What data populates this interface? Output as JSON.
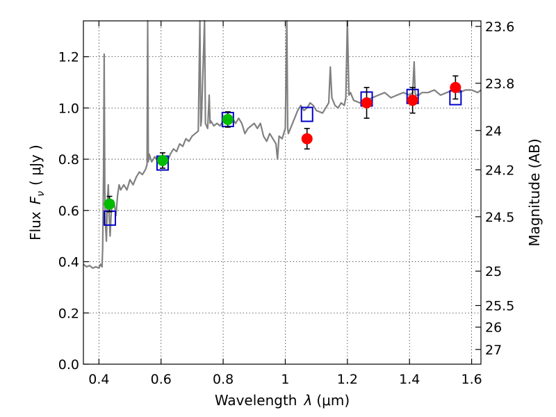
{
  "chart_data": {
    "type": "scatter",
    "xlabel": "Wavelength",
    "xlabel_symbol": "λ",
    "xlabel_unit": "(μm)",
    "ylabel": "Flux",
    "ylabel_symbol": "F",
    "ylabel_subscript": "ν",
    "ylabel_unit": "( μJy )",
    "y2label": "Magnitude (AB)",
    "xlim": [
      0.35,
      1.63
    ],
    "ylim": [
      0.0,
      1.34
    ],
    "grid": true,
    "x_ticks": [
      0.4,
      0.6,
      0.8,
      1.0,
      1.2,
      1.4,
      1.6
    ],
    "x_tick_labels": [
      "0.4",
      "0.6",
      "0.8",
      "1",
      "1.2",
      "1.4",
      "1.6"
    ],
    "y_ticks": [
      0.0,
      0.2,
      0.4,
      0.6,
      0.8,
      1.0,
      1.2
    ],
    "y_tick_labels": [
      "0.0",
      "0.2",
      "0.4",
      "0.6",
      "0.8",
      "1.0",
      "1.2"
    ],
    "mag_ticks": [
      {
        "mag": 23.6,
        "label": "23.6"
      },
      {
        "mag": 23.8,
        "label": "23.8"
      },
      {
        "mag": 24.0,
        "label": "24"
      },
      {
        "mag": 24.2,
        "label": "24.2"
      },
      {
        "mag": 24.5,
        "label": "24.5"
      },
      {
        "mag": 25.0,
        "label": "25"
      },
      {
        "mag": 25.5,
        "label": "25.5"
      },
      {
        "mag": 26.0,
        "label": "26"
      },
      {
        "mag": 27.0,
        "label": "27"
      }
    ],
    "series": [
      {
        "name": "model_spectrum",
        "kind": "line",
        "color": "#808080",
        "points": [
          [
            0.35,
            0.39
          ],
          [
            0.36,
            0.38
          ],
          [
            0.37,
            0.385
          ],
          [
            0.38,
            0.375
          ],
          [
            0.39,
            0.38
          ],
          [
            0.4,
            0.375
          ],
          [
            0.405,
            0.39
          ],
          [
            0.41,
            0.38
          ],
          [
            0.412,
            0.45
          ],
          [
            0.415,
            0.75
          ],
          [
            0.417,
            1.21
          ],
          [
            0.419,
            0.68
          ],
          [
            0.421,
            0.55
          ],
          [
            0.424,
            0.48
          ],
          [
            0.427,
            0.62
          ],
          [
            0.43,
            0.7
          ],
          [
            0.433,
            0.58
          ],
          [
            0.436,
            0.5
          ],
          [
            0.44,
            0.6
          ],
          [
            0.445,
            0.64
          ],
          [
            0.45,
            0.62
          ],
          [
            0.455,
            0.58
          ],
          [
            0.46,
            0.66
          ],
          [
            0.465,
            0.7
          ],
          [
            0.47,
            0.68
          ],
          [
            0.48,
            0.7
          ],
          [
            0.49,
            0.68
          ],
          [
            0.5,
            0.72
          ],
          [
            0.51,
            0.7
          ],
          [
            0.52,
            0.73
          ],
          [
            0.53,
            0.75
          ],
          [
            0.54,
            0.74
          ],
          [
            0.55,
            0.76
          ],
          [
            0.555,
            0.78
          ],
          [
            0.557,
            1.34
          ],
          [
            0.559,
            0.79
          ],
          [
            0.562,
            0.82
          ],
          [
            0.57,
            0.79
          ],
          [
            0.58,
            0.81
          ],
          [
            0.59,
            0.79
          ],
          [
            0.6,
            0.8
          ],
          [
            0.61,
            0.81
          ],
          [
            0.62,
            0.79
          ],
          [
            0.63,
            0.82
          ],
          [
            0.64,
            0.84
          ],
          [
            0.65,
            0.83
          ],
          [
            0.66,
            0.86
          ],
          [
            0.67,
            0.85
          ],
          [
            0.68,
            0.88
          ],
          [
            0.69,
            0.87
          ],
          [
            0.7,
            0.89
          ],
          [
            0.71,
            0.9
          ],
          [
            0.72,
            0.91
          ],
          [
            0.725,
            1.34
          ],
          [
            0.728,
            0.93
          ],
          [
            0.73,
            0.95
          ],
          [
            0.74,
            1.34
          ],
          [
            0.743,
            0.94
          ],
          [
            0.75,
            0.92
          ],
          [
            0.755,
            1.05
          ],
          [
            0.758,
            0.94
          ],
          [
            0.76,
            0.95
          ],
          [
            0.77,
            0.93
          ],
          [
            0.78,
            0.94
          ],
          [
            0.79,
            0.93
          ],
          [
            0.8,
            0.95
          ],
          [
            0.81,
            0.96
          ],
          [
            0.82,
            0.95
          ],
          [
            0.83,
            0.96
          ],
          [
            0.84,
            0.94
          ],
          [
            0.85,
            0.96
          ],
          [
            0.86,
            0.94
          ],
          [
            0.87,
            0.9
          ],
          [
            0.88,
            0.92
          ],
          [
            0.89,
            0.93
          ],
          [
            0.9,
            0.94
          ],
          [
            0.91,
            0.92
          ],
          [
            0.92,
            0.94
          ],
          [
            0.93,
            0.89
          ],
          [
            0.94,
            0.87
          ],
          [
            0.95,
            0.9
          ],
          [
            0.96,
            0.88
          ],
          [
            0.97,
            0.86
          ],
          [
            0.975,
            0.8
          ],
          [
            0.98,
            0.89
          ],
          [
            0.99,
            0.88
          ],
          [
            0.995,
            0.9
          ],
          [
            1.0,
            0.92
          ],
          [
            1.005,
            1.34
          ],
          [
            1.008,
            0.92
          ],
          [
            1.01,
            0.9
          ],
          [
            1.02,
            0.93
          ],
          [
            1.03,
            0.96
          ],
          [
            1.04,
            0.99
          ],
          [
            1.05,
            1.01
          ],
          [
            1.06,
            0.99
          ],
          [
            1.07,
            1.0
          ],
          [
            1.08,
            1.02
          ],
          [
            1.09,
            1.01
          ],
          [
            1.1,
            0.99
          ],
          [
            1.12,
            0.98
          ],
          [
            1.13,
            1.0
          ],
          [
            1.14,
            1.02
          ],
          [
            1.145,
            1.16
          ],
          [
            1.15,
            1.04
          ],
          [
            1.16,
            1.01
          ],
          [
            1.17,
            1.0
          ],
          [
            1.18,
            1.02
          ],
          [
            1.19,
            1.01
          ],
          [
            1.195,
            1.04
          ],
          [
            1.2,
            1.34
          ],
          [
            1.205,
            1.05
          ],
          [
            1.21,
            1.06
          ],
          [
            1.22,
            1.03
          ],
          [
            1.24,
            1.02
          ],
          [
            1.26,
            1.03
          ],
          [
            1.28,
            1.04
          ],
          [
            1.3,
            1.05
          ],
          [
            1.32,
            1.06
          ],
          [
            1.34,
            1.04
          ],
          [
            1.36,
            1.05
          ],
          [
            1.38,
            1.06
          ],
          [
            1.4,
            1.05
          ],
          [
            1.41,
            1.06
          ],
          [
            1.415,
            1.18
          ],
          [
            1.418,
            1.06
          ],
          [
            1.42,
            1.05
          ],
          [
            1.43,
            1.05
          ],
          [
            1.44,
            1.06
          ],
          [
            1.46,
            1.06
          ],
          [
            1.48,
            1.07
          ],
          [
            1.5,
            1.05
          ],
          [
            1.52,
            1.06
          ],
          [
            1.54,
            1.07
          ],
          [
            1.56,
            1.06
          ],
          [
            1.58,
            1.07
          ],
          [
            1.6,
            1.07
          ],
          [
            1.62,
            1.06
          ],
          [
            1.63,
            1.07
          ]
        ]
      },
      {
        "name": "synthetic_photometry",
        "kind": "open_square",
        "color": "#0000cc",
        "x": [
          0.435,
          0.605,
          0.815,
          1.07,
          1.262,
          1.41,
          1.548
        ],
        "y": [
          0.57,
          0.785,
          0.955,
          0.975,
          1.035,
          1.045,
          1.04
        ]
      },
      {
        "name": "observed_green",
        "kind": "circle",
        "color": "#00bb00",
        "x": [
          0.434,
          0.605,
          0.815
        ],
        "y": [
          0.625,
          0.795,
          0.955
        ],
        "yerr": [
          0.03,
          0.03,
          0.03
        ]
      },
      {
        "name": "observed_red",
        "kind": "circle",
        "color": "#ff0000",
        "x": [
          1.07,
          1.262,
          1.41,
          1.548
        ],
        "y": [
          0.88,
          1.02,
          1.03,
          1.08
        ],
        "yerr": [
          0.04,
          0.06,
          0.05,
          0.045
        ]
      }
    ]
  }
}
